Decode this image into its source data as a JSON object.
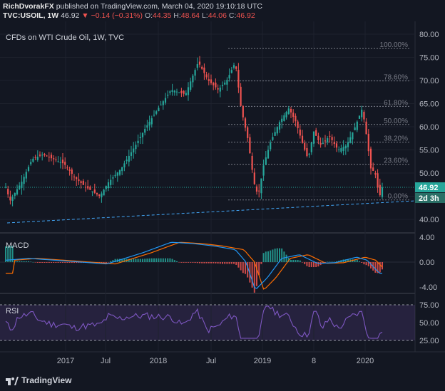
{
  "header": {
    "author": "RichDvorakFX",
    "published": "published on TradingView.com, March 04, 2020 19:10:18 UTC",
    "symbol": "TVC:USOIL, 1W",
    "last": "46.92",
    "change_arrow": "▼",
    "change": "−0.14 (−0.31%)",
    "o_label": "O:",
    "o_value": "44.35",
    "h_label": "H:",
    "h_value": "48.64",
    "l_label": "L:",
    "l_value": "44.06",
    "c_label": "C:",
    "c_value": "46.92"
  },
  "chart": {
    "title": "CFDs on WTI Crude Oil, 1W, TVC",
    "price_axis": [
      "80.00",
      "75.00",
      "70.00",
      "65.00",
      "60.00",
      "55.00",
      "50.00",
      "45.00",
      "40.00"
    ],
    "price_badge": "46.92",
    "countdown_badge": "2d 3h",
    "fib_levels": [
      {
        "label": "100.00%",
        "price": 76.9
      },
      {
        "label": "78.60%",
        "price": 69.9
      },
      {
        "label": "61.80%",
        "price": 64.4
      },
      {
        "label": "50.00%",
        "price": 60.5
      },
      {
        "label": "38.20%",
        "price": 56.7
      },
      {
        "label": "23.60%",
        "price": 51.9
      },
      {
        "label": "0.00%",
        "price": 44.2
      }
    ],
    "macd_label": "MACD",
    "macd_axis": [
      "4.00",
      "0.00",
      "-4.00"
    ],
    "rsi_label": "RSI",
    "rsi_axis": [
      "75.00",
      "50.00",
      "25.00"
    ],
    "time_axis": [
      "2017",
      "Jul",
      "2018",
      "Jul",
      "2019",
      "8",
      "2020"
    ],
    "colors": {
      "up": "#26a69a",
      "down": "#ef5350",
      "bg": "#131722",
      "macd": "#2196f3",
      "signal": "#ff6d00",
      "rsi": "#7e57c2",
      "badge_price": "#26a69a",
      "badge_time": "#2a6f66"
    }
  },
  "footer": {
    "brand": "TradingView"
  }
}
